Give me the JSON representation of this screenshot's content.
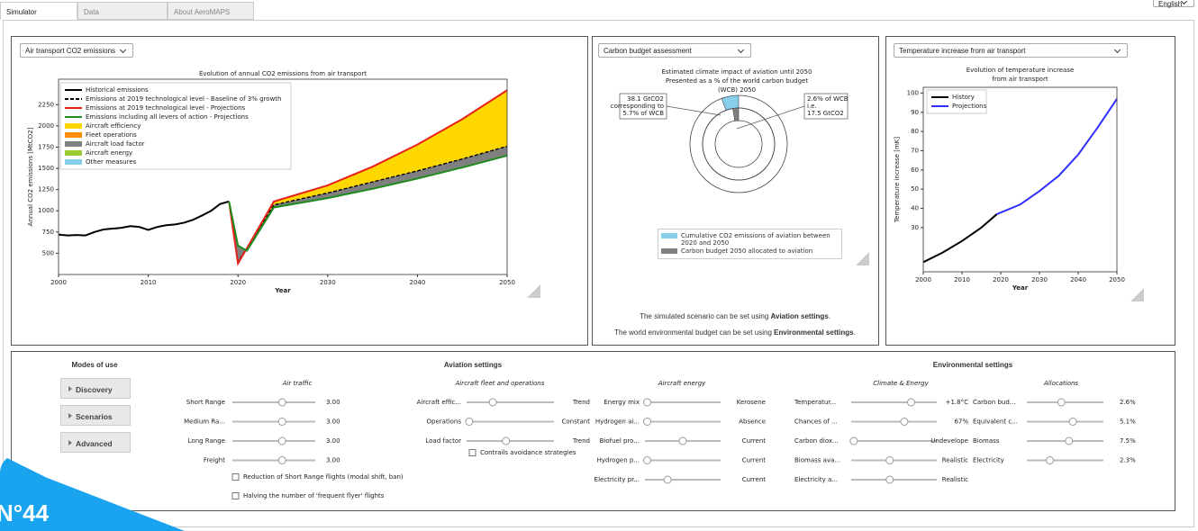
{
  "tabs": [
    "Simulator",
    "Data",
    "About AeroMAPS"
  ],
  "language": "English",
  "badge": "N°44",
  "chart_data": [
    {
      "type": "line",
      "dropdown": "Air transport CO2 emissions",
      "title": "Evolution of annual CO2 emissions from air transport",
      "xlabel": "Year",
      "ylabel": "Annual CO2 emissions [MtCO2]",
      "x": [
        2000,
        2001,
        2002,
        2003,
        2004,
        2005,
        2006,
        2007,
        2008,
        2009,
        2010,
        2011,
        2012,
        2013,
        2014,
        2015,
        2016,
        2017,
        2018,
        2019,
        2020,
        2021,
        2024,
        2030,
        2035,
        2040,
        2045,
        2050
      ],
      "xlim": [
        2000,
        2050
      ],
      "xticks": [
        2000,
        2010,
        2020,
        2030,
        2040,
        2050
      ],
      "ylim": [
        250,
        2550
      ],
      "yticks": [
        500,
        750,
        1000,
        1250,
        1500,
        1750,
        2000,
        2250
      ],
      "series": [
        {
          "name": "Historical emissions",
          "color": "#000000",
          "values": [
            720,
            710,
            715,
            710,
            750,
            780,
            790,
            800,
            820,
            810,
            775,
            810,
            830,
            840,
            860,
            895,
            945,
            1000,
            1080,
            1110,
            null,
            null,
            null,
            null,
            null,
            null,
            null,
            null
          ]
        },
        {
          "name": "Emissions at 2019 technological level - Baseline of 3% growth",
          "color": "#000000",
          "dash": true,
          "values": [
            null,
            null,
            null,
            null,
            null,
            null,
            null,
            null,
            null,
            null,
            null,
            null,
            null,
            null,
            null,
            null,
            null,
            null,
            null,
            1110,
            400,
            560,
            1070,
            1210,
            1340,
            1470,
            1610,
            1760
          ]
        },
        {
          "name": "Emissions at 2019 technological level - Projections",
          "color": "#e8201a",
          "values": [
            null,
            null,
            null,
            null,
            null,
            null,
            null,
            null,
            null,
            null,
            null,
            null,
            null,
            null,
            null,
            null,
            null,
            null,
            null,
            1110,
            380,
            560,
            1110,
            1300,
            1520,
            1780,
            2080,
            2420
          ]
        },
        {
          "name": "Emissions including all levers of action - Projections",
          "color": "#1e8c1e",
          "values": [
            null,
            null,
            null,
            null,
            null,
            null,
            null,
            null,
            null,
            null,
            null,
            null,
            null,
            null,
            null,
            null,
            null,
            null,
            null,
            1110,
            590,
            530,
            1040,
            1150,
            1260,
            1380,
            1510,
            1650
          ]
        }
      ],
      "areas": [
        {
          "name": "Aircraft efficiency",
          "color": "#ffd700"
        },
        {
          "name": "Fleet operations",
          "color": "#ff8c00"
        },
        {
          "name": "Aircraft load factor",
          "color": "#808080"
        },
        {
          "name": "Aircraft energy",
          "color": "#9acd32"
        },
        {
          "name": "Other measures",
          "color": "#87ceeb"
        }
      ]
    },
    {
      "type": "donut",
      "dropdown": "Carbon budget assessment",
      "title": [
        "Estimated climate impact of aviation until 2050",
        "Presented as a % of the world carbon budget",
        "(WCB) 2050"
      ],
      "series": [
        {
          "name": "Cumulative CO2 emissions of aviation between 2020 and 2050",
          "color": "#87ceeb",
          "values": [
            5.7
          ]
        },
        {
          "name": "Carbon budget 2050 allocated to aviation",
          "color": "#808080",
          "values": [
            2.6
          ]
        }
      ],
      "annotations": [
        [
          "38.1 GtCO2",
          "corresponding to",
          "5.7% of WCB"
        ],
        [
          "2.6% of WCB",
          "i.e.",
          "17.5 GtCO2"
        ]
      ],
      "notes": [
        {
          "text": "The simulated scenario can be set using ",
          "bold": "Aviation settings",
          "end": "."
        },
        {
          "text": "The world environmental budget can be set using ",
          "bold": "Environmental settings",
          "end": "."
        }
      ]
    },
    {
      "type": "line",
      "dropdown": "Temperature increase from air transport",
      "title": [
        "Evolution of temperature increase",
        "from air transport"
      ],
      "xlabel": "Year",
      "ylabel": "Temperature increase [mK]",
      "x": [
        2000,
        2005,
        2010,
        2015,
        2019,
        2025,
        2030,
        2035,
        2040,
        2045,
        2050
      ],
      "xlim": [
        2000,
        2050
      ],
      "xticks": [
        2000,
        2010,
        2020,
        2030,
        2040,
        2050
      ],
      "ylim": [
        7,
        103
      ],
      "yticks": [
        30,
        40,
        50,
        60,
        70,
        80,
        90,
        100
      ],
      "series": [
        {
          "name": "History",
          "color": "#000000",
          "values": [
            12,
            17,
            23,
            30,
            37,
            null,
            null,
            null,
            null,
            null,
            null
          ]
        },
        {
          "name": "Projections",
          "color": "#2f2fff",
          "values": [
            null,
            null,
            null,
            null,
            37,
            42,
            49,
            57,
            68,
            82,
            97
          ]
        }
      ]
    }
  ],
  "bottom_panel": {
    "modes": {
      "title": "Modes of use",
      "buttons": [
        "Discovery",
        "Scenarios",
        "Advanced"
      ]
    },
    "aviation": {
      "title": "Aviation settings",
      "air_traffic": {
        "title": "Air traffic",
        "rows": [
          {
            "label": "Short Range",
            "value": "3.00"
          },
          {
            "label": "Medium Ra...",
            "value": "3.00"
          },
          {
            "label": "Long Range",
            "value": "3.00"
          },
          {
            "label": "Freight",
            "value": "3.00"
          }
        ],
        "checkboxes": [
          "Reduction of Short Range flights (modal shift, ban)",
          "Halving the number of 'frequent flyer' flights"
        ]
      },
      "fleet": {
        "title": "Aircraft fleet and operations",
        "rows": [
          {
            "label": "Aircraft effic...",
            "value": "Trend"
          },
          {
            "label": "Operations",
            "value": "Constant"
          },
          {
            "label": "Load factor",
            "value": "Trend"
          }
        ],
        "checkboxes": [
          "Contrails avoidance strategies"
        ]
      },
      "energy": {
        "title": "Aircraft energy",
        "rows": [
          {
            "label": "Energy mix",
            "value": "Kerosene"
          },
          {
            "label": "Hydrogen ai...",
            "value": "Absence"
          },
          {
            "label": "Biofuel pro...",
            "value": "Current"
          },
          {
            "label": "Hydrogen p...",
            "value": "Current"
          },
          {
            "label": "Electricity pr...",
            "value": "Current"
          }
        ]
      }
    },
    "environment": {
      "title": "Environmental settings",
      "climate": {
        "title": "Climate & Energy",
        "rows": [
          {
            "label": "Temperatur...",
            "value": "+1.8°C"
          },
          {
            "label": "Chances of ...",
            "value": "67%"
          },
          {
            "label": "Carbon diox...",
            "value": "Undevelope"
          },
          {
            "label": "Biomass ava...",
            "value": "Realistic"
          },
          {
            "label": "Electricity a...",
            "value": "Realistic"
          }
        ]
      },
      "allocations": {
        "title": "Allocations",
        "rows": [
          {
            "label": "Carbon bud...",
            "value": "2.6%"
          },
          {
            "label": "Equivalent c...",
            "value": "5.1%"
          },
          {
            "label": "Biomass",
            "value": "7.5%"
          },
          {
            "label": "Electricity",
            "value": "2.3%"
          }
        ]
      }
    }
  }
}
